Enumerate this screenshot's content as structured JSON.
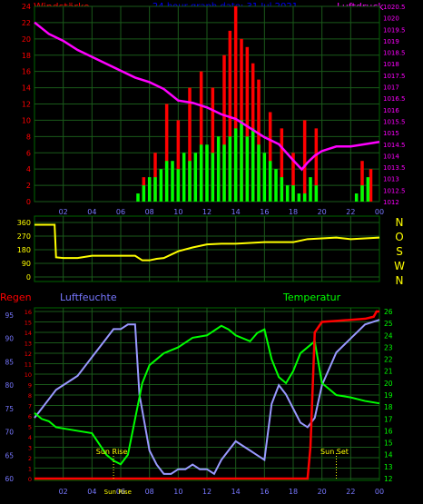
{
  "colors": {
    "wind_avg": "#00ff00",
    "wind_gust": "#ff0000",
    "pressure": "#ff00ff",
    "direction": "#ffff00",
    "regen": "#ff0000",
    "humidity": "#9999ff",
    "temperature": "#00ff00",
    "grid": "#1a5a1a",
    "title": "#0000ff",
    "axis_left": "#ff0000",
    "axis_blue": "#7777ff",
    "axis_yellow": "#ffff00"
  },
  "header": {
    "left_title": "Windstärke",
    "center_title": "24 hour graph date: 31 Jul 2021",
    "right_title": "Luftdruck"
  },
  "x_ticks": [
    "02",
    "04",
    "06",
    "08",
    "10",
    "12",
    "14",
    "16",
    "18",
    "20",
    "22",
    "00"
  ],
  "chart_data": [
    {
      "type": "bar",
      "id": "wind_pressure",
      "ylabel_left": "Windstärke",
      "ylabel_right": "Luftdruck",
      "ylim_left": [
        0,
        24
      ],
      "left_ticks": [
        "0",
        "2",
        "4",
        "6",
        "8",
        "10",
        "12",
        "14",
        "16",
        "18",
        "20",
        "22",
        "24"
      ],
      "ylim_right": [
        1012.0,
        1020.5
      ],
      "right_ticks": [
        "1012",
        "1012.5",
        "1013",
        "1013.5",
        "1014",
        "1014.5",
        "1015",
        "1015.5",
        "1016",
        "1016.5",
        "1017",
        "1017.5",
        "1018",
        "1018.5",
        "1019",
        "1019.5",
        "1020",
        "1020.5"
      ],
      "xlim": [
        0,
        24
      ],
      "series": [
        {
          "name": "Wind avg",
          "style": "green bars",
          "x": [
            7.2,
            7.6,
            8.0,
            8.4,
            8.8,
            9.2,
            9.6,
            10.0,
            10.4,
            10.8,
            11.2,
            11.6,
            12.0,
            12.4,
            12.8,
            13.2,
            13.6,
            14.0,
            14.4,
            14.8,
            15.2,
            15.6,
            16.0,
            16.4,
            16.8,
            17.2,
            17.6,
            18.0,
            18.4,
            18.8,
            19.2,
            19.6,
            22.4,
            22.8,
            23.2
          ],
          "values": [
            1,
            2,
            3,
            3,
            4,
            5,
            5,
            4,
            6,
            5,
            6,
            7,
            7,
            6,
            8,
            7,
            8,
            9,
            10,
            8,
            9,
            7,
            6,
            5,
            4,
            3,
            2,
            2,
            1,
            1,
            3,
            2,
            1,
            2,
            3
          ]
        },
        {
          "name": "Wind gust",
          "style": "red bars",
          "x": [
            7.6,
            8.4,
            9.2,
            10.0,
            10.8,
            11.6,
            12.4,
            13.2,
            13.6,
            14.0,
            14.4,
            14.8,
            15.2,
            15.6,
            16.4,
            17.2,
            18.0,
            18.8,
            19.6,
            22.8,
            23.4
          ],
          "values": [
            3,
            6,
            12,
            10,
            14,
            16,
            14,
            18,
            21,
            24,
            20,
            19,
            17,
            15,
            11,
            9,
            6,
            10,
            9,
            5,
            4
          ]
        },
        {
          "name": "Luftdruck",
          "style": "magenta line",
          "x": [
            0,
            1,
            2,
            3,
            4,
            5,
            6,
            7,
            8,
            9,
            10,
            11,
            12,
            13,
            14,
            15,
            16,
            17,
            18,
            18.6,
            19,
            19.5,
            20,
            21,
            22,
            23,
            24
          ],
          "values": [
            1019.8,
            1019.3,
            1019.0,
            1018.6,
            1018.3,
            1018.0,
            1017.7,
            1017.4,
            1017.2,
            1016.9,
            1016.4,
            1016.3,
            1016.1,
            1015.8,
            1015.6,
            1015.2,
            1014.8,
            1014.5,
            1013.8,
            1013.4,
            1013.7,
            1014.0,
            1014.2,
            1014.4,
            1014.4,
            1014.5,
            1014.6
          ]
        }
      ]
    },
    {
      "type": "line",
      "id": "direction",
      "ylim": [
        0,
        360
      ],
      "left_ticks": [
        "0",
        "90",
        "180",
        "270",
        "360"
      ],
      "right_labels": [
        "N",
        "W",
        "S",
        "O",
        "N"
      ],
      "xlim": [
        0,
        24
      ],
      "series": [
        {
          "name": "Windrichtung",
          "x": [
            0,
            1.4,
            1.5,
            2,
            3,
            4,
            5,
            6,
            7,
            7.5,
            8,
            8.5,
            9,
            10,
            11,
            12,
            13,
            14,
            15,
            16,
            17,
            18,
            19,
            20,
            21,
            22,
            23,
            24
          ],
          "values": [
            345,
            345,
            130,
            125,
            125,
            140,
            140,
            140,
            140,
            110,
            110,
            120,
            125,
            170,
            195,
            215,
            220,
            220,
            225,
            230,
            230,
            230,
            250,
            255,
            260,
            250,
            255,
            260
          ]
        }
      ]
    },
    {
      "type": "line",
      "id": "rain_humidity_temp",
      "ylabel_left": "Regen",
      "ylabel_mid": "Luftfeuchte",
      "ylabel_right": "Temperatur",
      "ylim_regen": [
        0,
        16
      ],
      "regen_ticks": [
        "0",
        "1",
        "2",
        "3",
        "4",
        "5",
        "6",
        "7",
        "8",
        "9",
        "10",
        "11",
        "12",
        "13",
        "14",
        "15",
        "16"
      ],
      "ylim_humidity": [
        60,
        95
      ],
      "humidity_ticks": [
        "60",
        "65",
        "70",
        "75",
        "80",
        "85",
        "90",
        "95"
      ],
      "ylim_temp": [
        12,
        26
      ],
      "temp_ticks": [
        "12",
        "13",
        "14",
        "15",
        "16",
        "17",
        "18",
        "19",
        "20",
        "21",
        "22",
        "23",
        "24",
        "25",
        "26"
      ],
      "xlim": [
        0,
        24
      ],
      "annotations": [
        {
          "text": "Sun Rise",
          "x": 5.5
        },
        {
          "text": "Sun Set",
          "x": 21.0
        }
      ],
      "bottom_label": "Sun Rise",
      "series": [
        {
          "name": "Regen",
          "x": [
            0,
            19.0,
            19.2,
            19.5,
            20,
            21,
            22,
            23,
            23.6,
            23.8,
            24
          ],
          "values": [
            0,
            0,
            3,
            14,
            15.0,
            15.1,
            15.2,
            15.3,
            15.5,
            16,
            16
          ]
        },
        {
          "name": "Luftfeuchte",
          "x": [
            0,
            0.5,
            1,
            1.5,
            2,
            2.5,
            3,
            3.5,
            4,
            4.5,
            5,
            5.5,
            6,
            6.5,
            7,
            7.3,
            8,
            8.5,
            9,
            9.5,
            10,
            10.5,
            11,
            11.5,
            12,
            12.5,
            13,
            13.5,
            14,
            14.5,
            15,
            15.5,
            16,
            16.5,
            17,
            17.5,
            18,
            18.5,
            19,
            19.5,
            20,
            21,
            22,
            23,
            24
          ],
          "values": [
            73,
            75,
            77,
            79,
            80,
            81,
            82,
            84,
            86,
            88,
            90,
            92,
            92,
            93,
            93,
            78,
            66,
            63,
            61,
            61,
            62,
            62,
            63,
            62,
            62,
            61,
            64,
            66,
            68,
            67,
            66,
            65,
            64,
            76,
            80,
            78,
            75,
            72,
            71,
            73,
            80,
            87,
            90,
            93,
            94
          ]
        },
        {
          "name": "Temperatur",
          "x": [
            0,
            0.5,
            1,
            1.5,
            2,
            3,
            4,
            5,
            5.5,
            6,
            6.5,
            7,
            7.5,
            8,
            8.5,
            9,
            10,
            11,
            12,
            13,
            13.5,
            14,
            15,
            15.5,
            16,
            16.5,
            17,
            17.5,
            18,
            18.5,
            19,
            19.5,
            20,
            21,
            22,
            23,
            24
          ],
          "values": [
            17.5,
            17,
            16.8,
            16.3,
            16.2,
            16,
            15.8,
            14,
            13.5,
            13.2,
            14,
            17,
            20,
            21.5,
            22,
            22.5,
            23,
            23.8,
            24,
            24.8,
            24.5,
            24,
            23.5,
            24.2,
            24.5,
            22,
            20.5,
            20,
            21,
            22.5,
            23,
            23.5,
            20,
            19,
            18.8,
            18.5,
            18.3
          ]
        }
      ]
    }
  ]
}
